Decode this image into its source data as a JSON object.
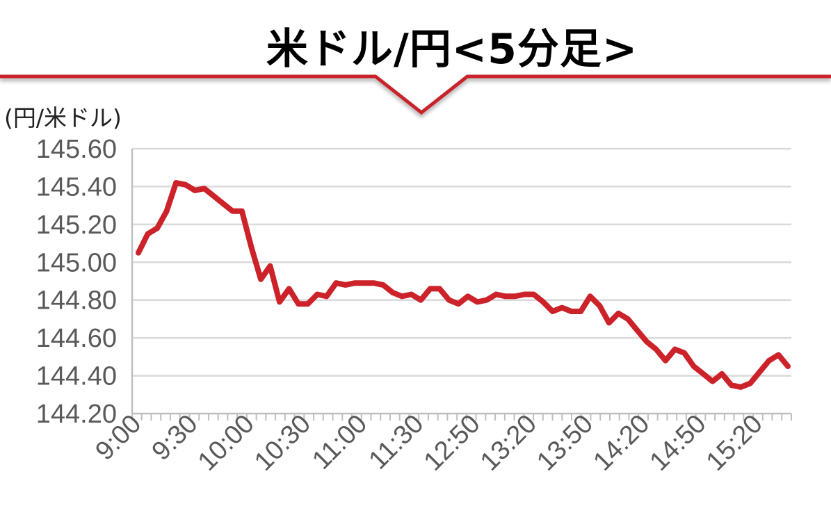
{
  "chart_data": {
    "type": "line",
    "title": "米ドル/円<5分足>",
    "ylabel": "(円/米ドル)",
    "xlabel": "",
    "ylim": [
      144.2,
      145.6
    ],
    "yticks": [
      "145.60",
      "145.40",
      "145.20",
      "145.00",
      "144.80",
      "144.60",
      "144.40",
      "144.20"
    ],
    "xtick_labels": [
      "9:00",
      "9:30",
      "10:00",
      "10:30",
      "11:00",
      "11:30",
      "12:50",
      "13:20",
      "13:50",
      "14:20",
      "14:50",
      "15:20"
    ],
    "grid": true,
    "colors": {
      "line": "#cc2229",
      "header_line": "#c8242b",
      "grid": "#d9d9d9",
      "axis": "#bfbfbf",
      "tick_text": "#595959"
    },
    "series": [
      {
        "values": [
          145.05,
          145.15,
          145.18,
          145.27,
          145.42,
          145.41,
          145.38,
          145.39,
          145.35,
          145.31,
          145.27,
          145.27,
          145.08,
          144.91,
          144.98,
          144.79,
          144.86,
          144.78,
          144.78,
          144.83,
          144.82,
          144.89,
          144.88,
          144.89,
          144.89,
          144.89,
          144.88,
          144.84,
          144.82,
          144.83,
          144.8,
          144.86,
          144.86,
          144.8,
          144.78,
          144.82,
          144.79,
          144.8,
          144.83,
          144.82,
          144.82,
          144.83,
          144.83,
          144.79,
          144.74,
          144.76,
          144.74,
          144.74,
          144.82,
          144.77,
          144.68,
          144.73,
          144.7,
          144.64,
          144.58,
          144.54,
          144.48,
          144.54,
          144.52,
          144.45,
          144.41,
          144.37,
          144.41,
          144.35,
          144.34,
          144.36,
          144.42,
          144.48,
          144.51,
          144.45
        ]
      }
    ]
  }
}
